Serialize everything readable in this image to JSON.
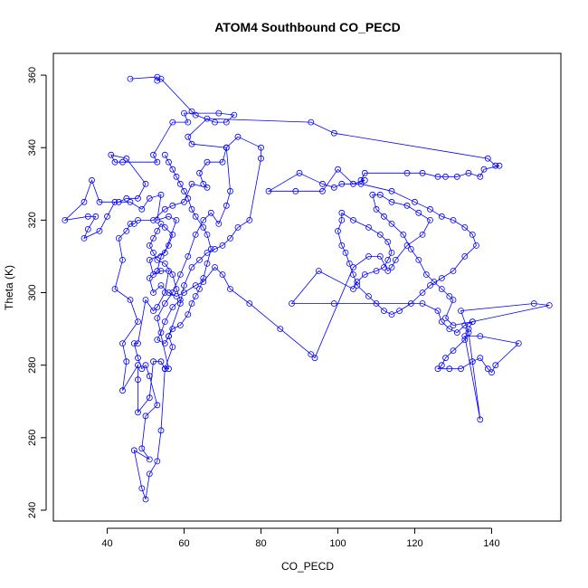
{
  "chart_data": {
    "type": "line",
    "title": "ATOM4 Southbound CO_PECD",
    "xlabel": "CO_PECD",
    "ylabel": "Theta (K)",
    "xlim": [
      26,
      158
    ],
    "ylim": [
      237,
      366
    ],
    "x_ticks": [
      40,
      60,
      80,
      100,
      120,
      140
    ],
    "y_ticks": [
      240,
      260,
      280,
      300,
      320,
      340,
      360
    ],
    "grid": false,
    "legend": "none",
    "series": [
      {
        "color": "#0000ff",
        "marker": "open-circle",
        "points": [
          [
            46,
            359
          ],
          [
            53,
            359.5
          ],
          [
            53,
            358.5
          ],
          [
            54,
            359
          ],
          [
            62,
            350
          ],
          [
            63,
            349
          ],
          [
            68,
            347
          ],
          [
            71,
            347
          ],
          [
            73,
            349
          ],
          [
            69,
            349.5
          ],
          [
            60,
            349.5
          ],
          [
            61,
            347
          ],
          [
            57,
            347
          ],
          [
            52,
            338
          ],
          [
            53,
            336
          ],
          [
            44,
            336
          ],
          [
            42,
            336
          ],
          [
            41,
            338
          ],
          [
            45,
            337
          ],
          [
            50,
            330
          ],
          [
            48,
            326
          ],
          [
            45,
            326
          ],
          [
            43,
            325
          ],
          [
            38,
            325
          ],
          [
            36,
            331
          ],
          [
            34,
            325
          ],
          [
            29,
            320
          ],
          [
            35,
            321
          ],
          [
            37,
            321
          ],
          [
            35,
            317.5
          ],
          [
            34,
            315
          ],
          [
            38,
            317
          ],
          [
            40,
            321
          ],
          [
            42,
            325
          ],
          [
            46,
            325
          ],
          [
            49,
            323
          ],
          [
            51,
            326
          ],
          [
            54,
            327
          ],
          [
            53,
            320
          ],
          [
            56,
            321
          ],
          [
            58,
            320
          ],
          [
            55,
            311
          ],
          [
            51,
            309
          ],
          [
            52,
            305
          ],
          [
            54,
            306
          ],
          [
            56,
            306
          ],
          [
            55,
            300
          ],
          [
            53,
            296
          ],
          [
            52,
            295
          ],
          [
            50,
            298
          ],
          [
            48,
            286
          ],
          [
            47,
            286
          ],
          [
            48,
            282
          ],
          [
            49,
            279
          ],
          [
            50,
            280
          ],
          [
            51,
            277
          ],
          [
            53,
            269
          ],
          [
            50,
            266
          ],
          [
            49,
            257
          ],
          [
            51,
            254
          ],
          [
            47,
            256.5
          ],
          [
            49,
            246
          ],
          [
            50,
            243
          ],
          [
            51,
            250
          ],
          [
            53,
            253.5
          ],
          [
            54,
            262
          ],
          [
            55,
            279
          ],
          [
            57,
            285
          ],
          [
            56,
            288
          ],
          [
            59,
            297
          ],
          [
            60,
            302
          ],
          [
            62,
            307
          ],
          [
            64,
            309
          ],
          [
            66,
            311
          ],
          [
            68,
            312
          ],
          [
            70,
            313
          ],
          [
            72,
            315
          ],
          [
            74,
            318
          ],
          [
            77,
            320
          ],
          [
            80,
            337
          ],
          [
            80,
            340
          ],
          [
            74,
            343
          ],
          [
            71,
            340
          ],
          [
            70,
            336
          ],
          [
            66,
            336
          ],
          [
            64,
            333
          ],
          [
            65,
            330
          ],
          [
            66,
            329
          ],
          [
            62,
            330
          ],
          [
            60,
            325
          ],
          [
            57,
            324
          ],
          [
            55,
            323
          ],
          [
            52,
            320
          ],
          [
            48,
            320
          ],
          [
            47,
            319
          ],
          [
            46,
            319
          ],
          [
            45,
            317
          ],
          [
            43,
            315
          ],
          [
            44,
            309
          ],
          [
            42,
            301
          ],
          [
            46,
            298
          ],
          [
            48,
            292
          ],
          [
            44,
            286
          ],
          [
            45,
            281
          ],
          [
            44,
            273
          ],
          [
            48,
            280
          ],
          [
            48,
            276
          ],
          [
            48,
            267
          ],
          [
            51,
            271
          ],
          [
            52,
            281
          ],
          [
            54,
            281
          ],
          [
            55,
            279
          ],
          [
            56,
            279
          ],
          [
            53,
            293
          ],
          [
            55,
            297
          ],
          [
            57,
            300
          ],
          [
            59,
            305
          ],
          [
            61,
            310
          ],
          [
            63,
            316
          ],
          [
            65,
            320
          ],
          [
            67,
            322
          ],
          [
            69,
            319
          ],
          [
            71,
            324
          ],
          [
            72,
            328
          ],
          [
            71,
            340
          ],
          [
            62,
            341
          ],
          [
            61,
            343
          ],
          [
            66,
            348
          ],
          [
            93,
            347
          ],
          [
            99,
            344
          ],
          [
            139,
            337
          ],
          [
            141,
            335
          ],
          [
            142,
            335
          ],
          [
            138,
            334
          ],
          [
            137,
            332
          ],
          [
            134,
            333
          ],
          [
            131,
            332
          ],
          [
            128,
            332
          ],
          [
            126,
            332
          ],
          [
            122,
            333
          ],
          [
            118,
            333
          ],
          [
            107,
            333
          ],
          [
            106,
            331
          ],
          [
            107,
            331
          ],
          [
            104,
            330
          ],
          [
            100,
            334
          ],
          [
            96,
            328
          ],
          [
            89,
            328
          ],
          [
            82,
            328
          ],
          [
            90,
            333
          ],
          [
            96,
            330
          ],
          [
            99,
            329
          ],
          [
            101,
            330
          ],
          [
            106,
            330
          ],
          [
            114,
            328
          ],
          [
            120,
            325
          ],
          [
            124,
            323
          ],
          [
            127,
            321
          ],
          [
            130,
            320
          ],
          [
            133,
            318
          ],
          [
            135,
            316
          ],
          [
            136,
            313
          ],
          [
            133,
            310
          ],
          [
            130,
            306
          ],
          [
            127,
            304
          ],
          [
            124,
            302
          ],
          [
            122,
            300
          ],
          [
            119,
            297
          ],
          [
            116,
            295
          ],
          [
            114,
            294
          ],
          [
            112,
            295
          ],
          [
            110,
            297
          ],
          [
            108,
            299
          ],
          [
            105,
            302
          ],
          [
            104,
            305
          ],
          [
            103,
            308
          ],
          [
            102,
            311
          ],
          [
            101,
            313
          ],
          [
            100,
            317
          ],
          [
            101,
            320
          ],
          [
            101,
            322
          ],
          [
            104,
            320
          ],
          [
            108,
            318
          ],
          [
            111,
            316
          ],
          [
            113,
            314
          ],
          [
            114,
            311
          ],
          [
            113,
            309
          ],
          [
            112,
            307
          ],
          [
            110,
            306
          ],
          [
            107,
            305
          ],
          [
            105,
            303
          ],
          [
            104,
            301
          ],
          [
            95,
            306
          ],
          [
            88,
            297
          ],
          [
            99,
            297
          ],
          [
            122,
            297
          ],
          [
            126,
            295
          ],
          [
            127,
            292
          ],
          [
            129,
            290
          ],
          [
            131,
            289
          ],
          [
            133,
            291
          ],
          [
            135,
            292
          ],
          [
            134,
            290
          ],
          [
            133,
            287
          ],
          [
            130,
            284
          ],
          [
            128,
            282
          ],
          [
            127,
            280
          ],
          [
            126,
            279
          ],
          [
            129,
            279
          ],
          [
            132,
            279
          ],
          [
            135,
            281
          ],
          [
            137,
            282
          ],
          [
            139,
            279
          ],
          [
            140,
            278
          ],
          [
            141,
            280
          ],
          [
            147,
            286
          ],
          [
            137,
            288
          ],
          [
            133,
            288
          ],
          [
            137,
            265
          ],
          [
            134,
            289
          ],
          [
            132,
            295
          ],
          [
            151,
            297
          ],
          [
            155,
            296.5
          ],
          [
            135,
            292
          ],
          [
            130,
            291
          ],
          [
            128,
            293
          ],
          [
            130,
            298
          ],
          [
            129,
            299
          ],
          [
            127,
            301
          ],
          [
            125,
            303
          ],
          [
            123,
            305
          ],
          [
            121,
            309
          ],
          [
            119,
            312
          ],
          [
            117,
            316
          ],
          [
            114,
            319
          ],
          [
            112,
            321
          ],
          [
            110,
            323
          ],
          [
            109,
            327
          ],
          [
            111,
            327
          ],
          [
            114,
            325
          ],
          [
            118,
            324
          ],
          [
            121,
            322
          ],
          [
            124,
            320
          ],
          [
            122,
            316
          ],
          [
            118,
            313
          ],
          [
            115,
            309
          ],
          [
            114,
            307
          ],
          [
            113,
            306
          ],
          [
            111,
            310
          ],
          [
            108,
            310
          ],
          [
            104,
            307
          ],
          [
            94,
            282
          ],
          [
            93,
            283
          ],
          [
            85,
            290
          ],
          [
            77,
            297
          ],
          [
            72,
            301
          ],
          [
            70,
            305
          ],
          [
            68,
            307
          ],
          [
            65,
            303
          ],
          [
            63,
            302
          ],
          [
            60,
            300
          ],
          [
            58,
            299
          ],
          [
            56,
            300
          ],
          [
            54,
            302
          ],
          [
            52,
            300
          ],
          [
            51,
            304
          ],
          [
            53,
            306
          ],
          [
            54,
            310
          ],
          [
            56,
            313
          ],
          [
            57,
            316
          ],
          [
            55,
            318
          ],
          [
            54,
            319
          ],
          [
            53,
            317
          ],
          [
            52,
            315
          ],
          [
            51,
            313
          ],
          [
            52,
            311
          ],
          [
            53,
            309
          ],
          [
            55,
            308
          ],
          [
            57,
            305
          ],
          [
            58,
            301
          ],
          [
            59,
            298
          ],
          [
            57,
            296
          ],
          [
            55,
            292
          ],
          [
            54,
            289
          ],
          [
            53,
            287
          ],
          [
            55,
            286
          ],
          [
            56,
            288
          ],
          [
            57,
            290
          ],
          [
            59,
            291
          ],
          [
            61,
            294
          ],
          [
            62,
            297
          ],
          [
            63,
            299
          ],
          [
            64,
            301
          ],
          [
            65,
            304
          ],
          [
            66,
            308
          ],
          [
            67,
            312
          ],
          [
            66,
            316
          ],
          [
            65,
            318
          ],
          [
            63,
            321
          ],
          [
            62,
            323
          ],
          [
            61,
            326
          ],
          [
            60,
            328
          ],
          [
            59,
            330
          ],
          [
            58,
            332
          ],
          [
            57,
            334
          ],
          [
            56,
            336
          ],
          [
            55,
            338
          ]
        ]
      }
    ]
  }
}
